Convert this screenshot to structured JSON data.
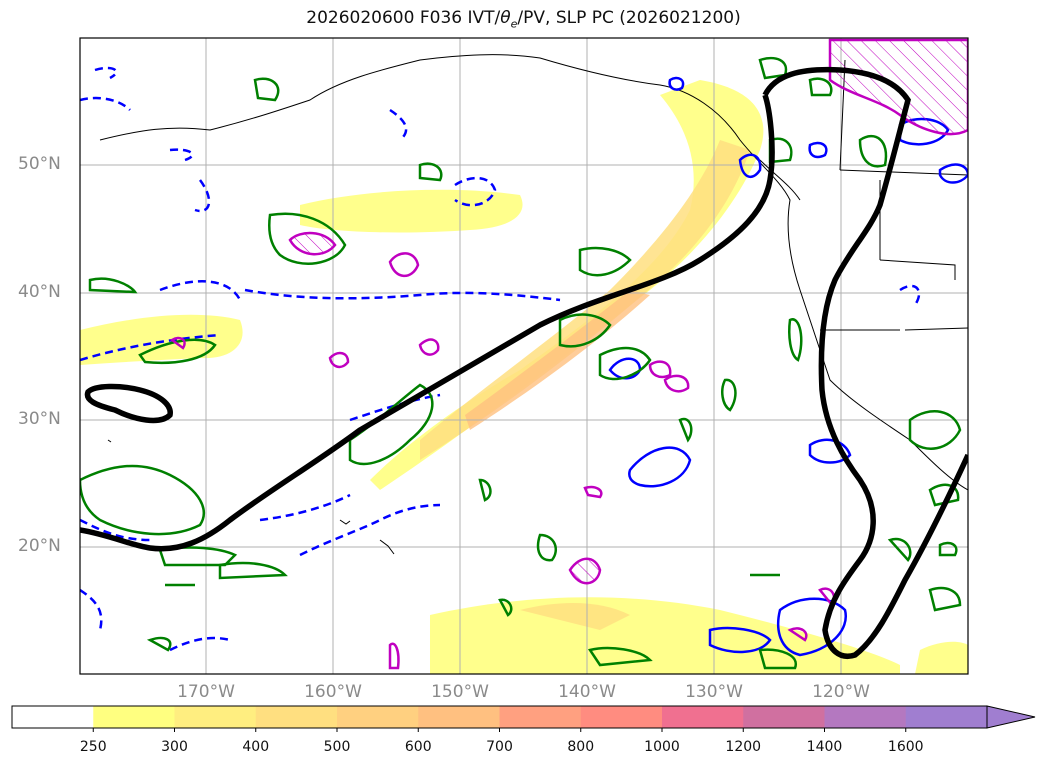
{
  "title": "2026020600 F036 IVT/θe/PV, SLP PC (2026021200)",
  "title_prefix": "2026020600 F036 IVT/",
  "title_theta": "θ",
  "title_theta_sub": "e",
  "title_suffix": "/PV, SLP PC (2026021200)",
  "lat_labels": [
    "50°N",
    "40°N",
    "30°N",
    "20°N"
  ],
  "lon_labels": [
    "170°W",
    "160°W",
    "150°W",
    "140°W",
    "130°W",
    "120°W"
  ],
  "colorbar": {
    "ticks": [
      "250",
      "300",
      "400",
      "500",
      "600",
      "700",
      "800",
      "1000",
      "1200",
      "1400",
      "1600"
    ],
    "colors": [
      "#ffff80",
      "#ffee80",
      "#ffdf80",
      "#ffd080",
      "#ffc080",
      "#ffa080",
      "#ff8c80",
      "#f07090",
      "#d070a0",
      "#b478c0",
      "#a07ed0"
    ],
    "extend": "max"
  },
  "map_features": {
    "land_color": "#ffffff",
    "coast_color": "#000000",
    "grid": true,
    "contours": [
      "SLP PC (black)",
      "θe (blue/green)",
      "PV (magenta hatched)"
    ]
  }
}
